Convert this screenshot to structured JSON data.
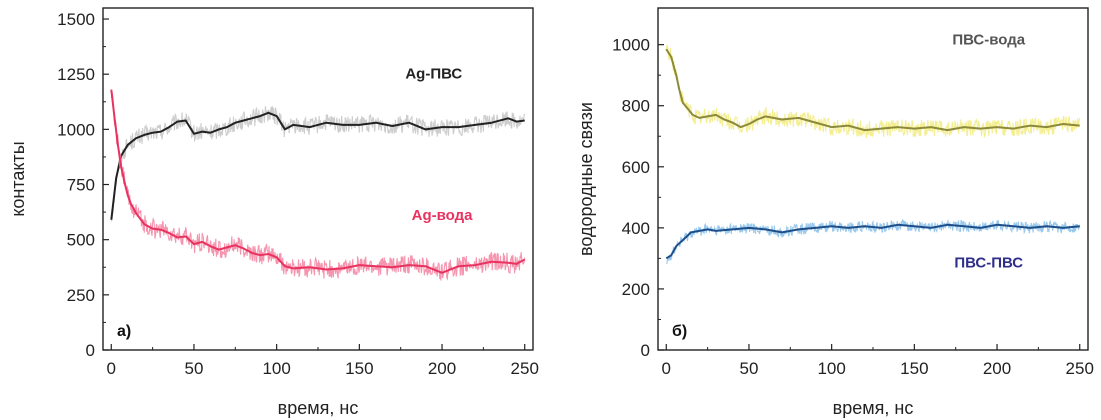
{
  "colors": {
    "axis": "#222222",
    "ag_pvs_band": "#c8c8c8",
    "ag_pvs_line": "#222222",
    "ag_water_band": "#f48aa6",
    "ag_water_line": "#e8325f",
    "ag_water_label": "#e8325f",
    "pvs_water_band": "#f3ec86",
    "pvs_water_line": "#8c8a3a",
    "pvs_water_label": "#555555",
    "pvs_pvs_band": "#8fc3ea",
    "pvs_pvs_line": "#1d4e8a",
    "pvs_pvs_label": "#2f2f8a"
  },
  "chart_data": [
    {
      "type": "line",
      "panel_label": "а)",
      "xlabel": "время, нс",
      "ylabel": "контакты",
      "xlim": [
        -5,
        255
      ],
      "ylim": [
        0,
        1550
      ],
      "xticks": [
        0,
        50,
        100,
        150,
        200,
        250
      ],
      "yticks": [
        0,
        250,
        500,
        750,
        1000,
        1250,
        1500
      ],
      "series": [
        {
          "name": "Ag-ПВС",
          "color_key": "ag_pvs",
          "band_halfwidth": 40,
          "x": [
            0,
            3,
            6,
            10,
            15,
            20,
            25,
            30,
            35,
            40,
            45,
            50,
            55,
            60,
            65,
            70,
            75,
            80,
            85,
            90,
            95,
            100,
            105,
            110,
            120,
            130,
            140,
            150,
            160,
            170,
            180,
            190,
            200,
            210,
            220,
            230,
            240,
            245,
            250
          ],
          "y": [
            590,
            780,
            880,
            930,
            960,
            975,
            985,
            990,
            1010,
            1035,
            1040,
            980,
            990,
            985,
            1000,
            1010,
            1030,
            1040,
            1050,
            1060,
            1075,
            1060,
            1000,
            1020,
            1010,
            1030,
            1020,
            1020,
            1030,
            1015,
            1030,
            1000,
            1010,
            1010,
            1020,
            1030,
            1050,
            1035,
            1040
          ]
        },
        {
          "name": "Ag-вода",
          "color_key": "ag_water",
          "band_halfwidth": 45,
          "x": [
            0,
            2,
            4,
            6,
            8,
            10,
            12,
            15,
            18,
            20,
            25,
            30,
            35,
            40,
            45,
            50,
            55,
            60,
            65,
            70,
            75,
            80,
            85,
            90,
            95,
            100,
            105,
            110,
            120,
            130,
            140,
            150,
            160,
            170,
            180,
            190,
            200,
            210,
            220,
            230,
            240,
            245,
            250
          ],
          "y": [
            1180,
            1050,
            930,
            830,
            760,
            700,
            660,
            620,
            590,
            570,
            550,
            545,
            530,
            510,
            515,
            480,
            490,
            470,
            455,
            465,
            475,
            460,
            440,
            430,
            435,
            420,
            380,
            370,
            375,
            365,
            370,
            385,
            380,
            375,
            385,
            380,
            350,
            380,
            385,
            400,
            395,
            390,
            410
          ]
        }
      ],
      "annotations": [
        {
          "text": "Ag-ПВС",
          "x": 195,
          "y": 1230,
          "color_key": "ag_pvs_line"
        },
        {
          "text": "Ag-вода",
          "x": 200,
          "y": 590,
          "color_key": "ag_water_label"
        }
      ]
    },
    {
      "type": "line",
      "panel_label": "б)",
      "xlabel": "время, нс",
      "ylabel": "водородные связи",
      "xlim": [
        -5,
        255
      ],
      "ylim": [
        0,
        1120
      ],
      "xticks": [
        0,
        50,
        100,
        150,
        200,
        250
      ],
      "yticks": [
        0,
        200,
        400,
        600,
        800,
        1000
      ],
      "series": [
        {
          "name": "ПВС-вода",
          "color_key": "pvs_water",
          "band_halfwidth": 28,
          "x": [
            0,
            3,
            6,
            8,
            10,
            13,
            16,
            20,
            25,
            30,
            35,
            40,
            45,
            50,
            55,
            60,
            70,
            80,
            90,
            100,
            110,
            120,
            130,
            140,
            150,
            160,
            170,
            180,
            190,
            200,
            210,
            220,
            230,
            240,
            250
          ],
          "y": [
            985,
            960,
            900,
            850,
            810,
            790,
            770,
            760,
            765,
            770,
            755,
            745,
            730,
            740,
            755,
            765,
            755,
            760,
            745,
            730,
            735,
            720,
            725,
            730,
            725,
            730,
            720,
            730,
            725,
            730,
            725,
            735,
            730,
            740,
            735
          ]
        },
        {
          "name": "ПВС-ПВС",
          "color_key": "pvs_pvs",
          "band_halfwidth": 18,
          "x": [
            0,
            3,
            6,
            10,
            15,
            20,
            25,
            30,
            40,
            50,
            60,
            70,
            80,
            90,
            100,
            110,
            120,
            130,
            140,
            150,
            160,
            170,
            180,
            190,
            200,
            210,
            220,
            230,
            240,
            250
          ],
          "y": [
            300,
            310,
            340,
            360,
            385,
            390,
            395,
            390,
            395,
            400,
            395,
            385,
            395,
            400,
            405,
            400,
            405,
            400,
            410,
            405,
            400,
            410,
            405,
            400,
            410,
            405,
            400,
            405,
            400,
            405
          ]
        }
      ],
      "annotations": [
        {
          "text": "ПВС-вода",
          "x": 195,
          "y": 1000,
          "color_key": "pvs_water_label"
        },
        {
          "text": "ПВС-ПВС",
          "x": 195,
          "y": 270,
          "color_key": "pvs_pvs_label"
        }
      ]
    }
  ]
}
